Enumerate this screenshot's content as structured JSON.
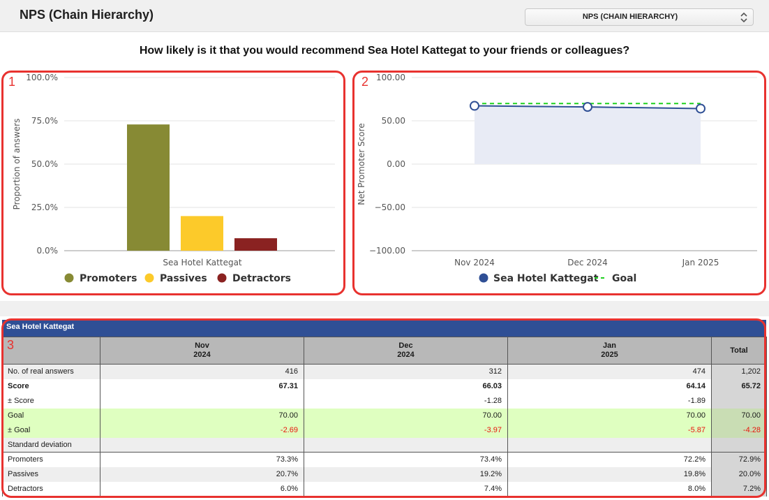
{
  "header": {
    "title": "NPS (Chain Hierarchy)",
    "select_value": "NPS (CHAIN HIERARCHY)"
  },
  "question": "How likely is it that you would recommend Sea Hotel Kattegat to your friends or colleagues?",
  "annotations": [
    "1",
    "2",
    "3"
  ],
  "chart_data": [
    {
      "type": "bar",
      "ylabel": "Proportion of answers",
      "ylim": [
        0,
        100
      ],
      "yticks": [
        "0.0%",
        "25.0%",
        "50.0%",
        "75.0%",
        "100.0%"
      ],
      "category": "Sea Hotel Kattegat",
      "series": [
        {
          "name": "Promoters",
          "value": 72.9,
          "color": "#878a34"
        },
        {
          "name": "Passives",
          "value": 20.0,
          "color": "#fcca2a"
        },
        {
          "name": "Detractors",
          "value": 7.2,
          "color": "#8a2221"
        }
      ],
      "legend": "bottom"
    },
    {
      "type": "line",
      "ylabel": "Net Promoter Score",
      "ylim": [
        -100,
        100
      ],
      "yticks": [
        "−100.00",
        "−50.00",
        "0.00",
        "50.00",
        "100.00"
      ],
      "categories": [
        "Nov 2024",
        "Dec 2024",
        "Jan 2025"
      ],
      "series": [
        {
          "name": "Sea Hotel Kattegat",
          "values": [
            67.31,
            66.03,
            64.14
          ],
          "color": "#2f4f95",
          "area": true
        },
        {
          "name": "Goal",
          "values": [
            70,
            70,
            70
          ],
          "color": "#1fd11f",
          "dashed": true
        }
      ],
      "legend": "bottom"
    }
  ],
  "table": {
    "title": "Sea Hotel Kattegat",
    "columns": [
      {
        "l1": "Nov",
        "l2": "2024"
      },
      {
        "l1": "Dec",
        "l2": "2024"
      },
      {
        "l1": "Jan",
        "l2": "2025"
      }
    ],
    "total_label": "Total",
    "rows": [
      {
        "label": "No. of real answers",
        "cells": [
          "416",
          "312",
          "474"
        ],
        "total": "1,202"
      },
      {
        "label": "Score",
        "cells": [
          "67.31",
          "66.03",
          "64.14"
        ],
        "total": "65.72"
      },
      {
        "label": "± Score",
        "cells": [
          "",
          "-1.28",
          "-1.89"
        ],
        "total": ""
      },
      {
        "label": "Goal",
        "cells": [
          "70.00",
          "70.00",
          "70.00"
        ],
        "total": "70.00"
      },
      {
        "label": "± Goal",
        "cells": [
          "-2.69",
          "-3.97",
          "-5.87"
        ],
        "total": "-4.28"
      },
      {
        "label": "Standard deviation",
        "cells": [
          "",
          "",
          ""
        ],
        "total": ""
      },
      {
        "label": "Promoters",
        "cells": [
          "73.3%",
          "73.4%",
          "72.2%"
        ],
        "total": "72.9%"
      },
      {
        "label": "Passives",
        "cells": [
          "20.7%",
          "19.2%",
          "19.8%"
        ],
        "total": "20.0%"
      },
      {
        "label": "Detractors",
        "cells": [
          "6.0%",
          "7.4%",
          "8.0%"
        ],
        "total": "7.2%"
      }
    ]
  }
}
